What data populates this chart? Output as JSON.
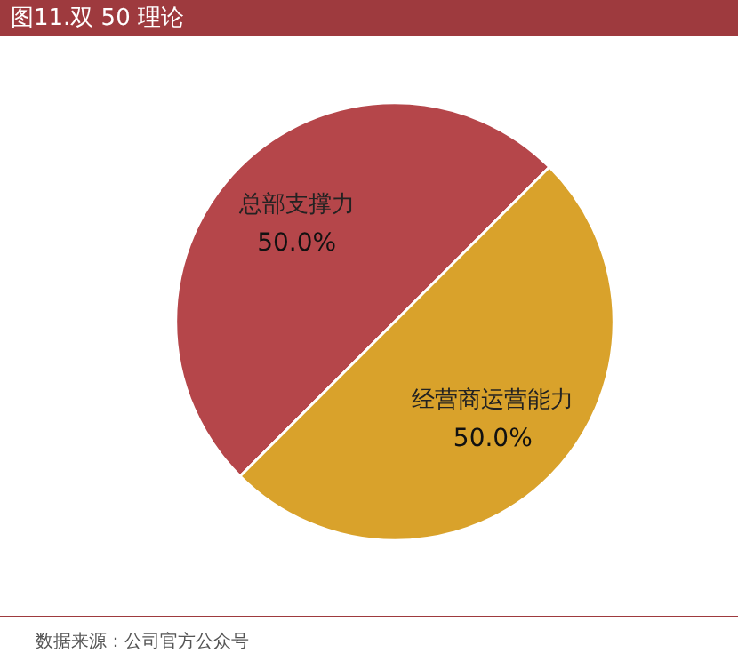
{
  "chart_data": {
    "type": "pie",
    "title": "图11.双 50 理论",
    "categories": [
      "总部支撑力",
      "经营商运营能力"
    ],
    "values": [
      50,
      50
    ],
    "colors": [
      "#b5464a",
      "#d9a22b"
    ],
    "data_labels": true,
    "value_labels": [
      "50.0%",
      "50.0%"
    ],
    "legend": false,
    "annotations": [
      "数据来源：公司官方公众号"
    ]
  }
}
